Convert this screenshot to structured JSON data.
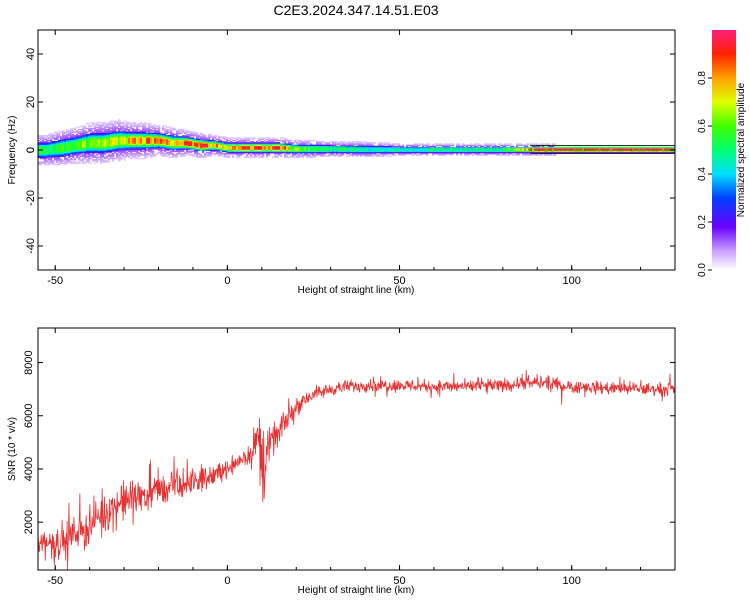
{
  "title": "C2E3.2024.347.14.51.E03",
  "chart_data": [
    {
      "type": "heatmap",
      "xlabel": "Height of straight line (km)",
      "ylabel": "Frequency (Hz)",
      "xlim": [
        -55,
        130
      ],
      "ylim": [
        -50,
        50
      ],
      "xticks": [
        "-50",
        "0",
        "50",
        "100"
      ],
      "yticks": [
        "-40",
        "-20",
        "0",
        "20",
        "40"
      ],
      "colorbar": {
        "label": "Normalized spectral amplitude",
        "range": [
          0,
          1
        ],
        "ticks": [
          "0.0",
          "0.2",
          "0.4",
          "0.6",
          "0.8"
        ]
      },
      "ridge": {
        "x": [
          -53,
          -48,
          -44,
          -40,
          -36,
          -32,
          -28,
          -24,
          -20,
          -16,
          -12,
          -8,
          -4,
          0,
          5,
          10,
          15,
          20,
          30,
          40,
          50,
          60,
          70,
          80,
          90,
          100,
          110,
          120,
          130
        ],
        "center_freq": [
          0,
          1,
          2,
          3,
          3,
          4,
          4,
          4,
          4,
          3,
          3,
          2,
          2,
          1,
          1,
          1,
          1,
          0.5,
          0.5,
          0.3,
          0.2,
          0.2,
          0.2,
          0.2,
          0.2,
          0.2,
          0.2,
          0.2,
          0.2
        ],
        "half_width": [
          3,
          3.5,
          3.5,
          4,
          4,
          4,
          3.5,
          3.5,
          3,
          3,
          2.5,
          2.5,
          2,
          2,
          2,
          2,
          2,
          1.8,
          1.5,
          1.5,
          1.2,
          1.2,
          1.2,
          1.2,
          1.2,
          1.2,
          1.2,
          1.2,
          1.2
        ],
        "amplitude": [
          0.5,
          0.55,
          0.6,
          0.6,
          0.65,
          0.7,
          0.75,
          0.8,
          0.85,
          0.8,
          0.85,
          0.9,
          0.8,
          0.75,
          0.85,
          0.85,
          0.85,
          0.6,
          0.5,
          0.45,
          0.45,
          0.5,
          0.5,
          0.5,
          0.95,
          0.95,
          0.95,
          0.95,
          0.95
        ]
      }
    },
    {
      "type": "line",
      "xlabel": "Height of straight line (km)",
      "ylabel": "SNR (10 * v/v)",
      "xlim": [
        -55,
        130
      ],
      "ylim": [
        200,
        9300
      ],
      "xticks": [
        "-50",
        "0",
        "50",
        "100"
      ],
      "yticks": [
        "2000",
        "4000",
        "6000",
        "8000"
      ],
      "color": "#e83030",
      "series": [
        {
          "x": [
            -55,
            -50,
            -45,
            -40,
            -35,
            -30,
            -25,
            -20,
            -15,
            -10,
            -5,
            0,
            3,
            6,
            8,
            9,
            10,
            12,
            15,
            18,
            20,
            22,
            25,
            30,
            35,
            40,
            50,
            60,
            70,
            80,
            90,
            100,
            110,
            120,
            130
          ],
          "values": [
            1300,
            1200,
            1500,
            1900,
            2400,
            2800,
            3000,
            3200,
            3300,
            3500,
            3700,
            4000,
            4300,
            4500,
            4800,
            5000,
            4200,
            4800,
            5400,
            6000,
            6300,
            6600,
            6800,
            7000,
            7100,
            7150,
            7150,
            7100,
            7100,
            7150,
            7250,
            7100,
            7050,
            7000,
            7000
          ],
          "noise": [
            900,
            900,
            1000,
            1100,
            1100,
            1100,
            1000,
            900,
            800,
            700,
            600,
            500,
            500,
            500,
            900,
            3500,
            3500,
            900,
            700,
            600,
            500,
            450,
            400,
            350,
            350,
            350,
            350,
            350,
            350,
            350,
            400,
            350,
            350,
            350,
            350
          ]
        }
      ]
    }
  ]
}
